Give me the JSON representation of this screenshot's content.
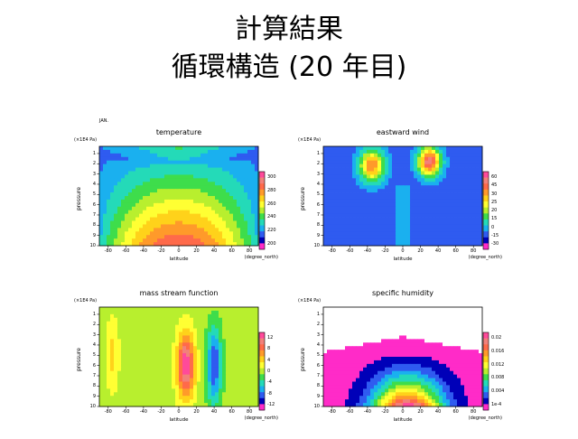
{
  "slide": {
    "title_line1": "計算結果",
    "title_line2": "循環構造 (20 年目)",
    "month_label": "JAN."
  },
  "chart_data": [
    {
      "type": "heatmap",
      "title": "temperature",
      "xlabel": "latitude",
      "x_unit": "(degree_north)",
      "ylabel": "pressure",
      "y_unit": "(×1E4 Pa)",
      "xlim": [
        -90,
        90
      ],
      "ylim": [
        10,
        0.3
      ],
      "x_ticks": [
        "-80",
        "-60",
        "-40",
        "-20",
        "0",
        "20",
        "40",
        "60",
        "80"
      ],
      "y_ticks": [
        "1",
        "2",
        "3",
        "4",
        "5",
        "6",
        "7",
        "8",
        "9",
        "10"
      ],
      "colorbar_ticks": [
        "300",
        "280",
        "260",
        "240",
        "220",
        "200"
      ],
      "colorbar_colors": [
        "#ff4a9a",
        "#f2807a",
        "#ff6a4a",
        "#ff9a2a",
        "#ffd21a",
        "#ffff33",
        "#b8ef2e",
        "#3edd4b",
        "#24dab8",
        "#1ab0ef",
        "#2f5bf0",
        "#0000b8",
        "#ff2bc8"
      ],
      "field": "temperature"
    },
    {
      "type": "heatmap",
      "title": "eastward wind",
      "xlabel": "latitude",
      "x_unit": "(degree_north)",
      "ylabel": "pressure",
      "y_unit": "(×1E4 Pa)",
      "xlim": [
        -90,
        90
      ],
      "ylim": [
        10,
        0.3
      ],
      "x_ticks": [
        "-80",
        "-60",
        "-40",
        "-20",
        "0",
        "20",
        "40",
        "60",
        "80"
      ],
      "y_ticks": [
        "1",
        "2",
        "3",
        "4",
        "5",
        "6",
        "7",
        "8",
        "9",
        "10"
      ],
      "colorbar_ticks": [
        "60",
        "45",
        "30",
        "25",
        "20",
        "15",
        "0",
        "-15",
        "-30"
      ],
      "colorbar_colors": [
        "#ff4a9a",
        "#f2807a",
        "#ff6a4a",
        "#ff9a2a",
        "#ffd21a",
        "#ffff33",
        "#b8ef2e",
        "#3edd4b",
        "#24dab8",
        "#1ab0ef",
        "#2f5bf0",
        "#0000b8",
        "#ff2bc8"
      ],
      "field": "wind"
    },
    {
      "type": "heatmap",
      "title": "mass stream function",
      "xlabel": "latitude",
      "x_unit": "(degree_north)",
      "ylabel": "pressure",
      "y_unit": "(×1E4 Pa)",
      "xlim": [
        -90,
        90
      ],
      "ylim": [
        10,
        0.3
      ],
      "x_ticks": [
        "-80",
        "-60",
        "-40",
        "-20",
        "0",
        "20",
        "40",
        "60",
        "80"
      ],
      "y_ticks": [
        "1",
        "2",
        "3",
        "4",
        "5",
        "6",
        "7",
        "8",
        "9",
        "10"
      ],
      "colorbar_ticks": [
        "12",
        "8",
        "4",
        "0",
        "-4",
        "-8",
        "-12"
      ],
      "colorbar_colors": [
        "#ff4a9a",
        "#f2807a",
        "#ff6a4a",
        "#ff9a2a",
        "#ffd21a",
        "#ffff33",
        "#b8ef2e",
        "#3edd4b",
        "#24dab8",
        "#1ab0ef",
        "#2f5bf0",
        "#0000b8",
        "#ff2bc8"
      ],
      "field": "stream"
    },
    {
      "type": "heatmap",
      "title": "specific humidity",
      "xlabel": "latitude",
      "x_unit": "(degree_north)",
      "ylabel": "pressure",
      "y_unit": "(×1E4 Pa)",
      "xlim": [
        -90,
        90
      ],
      "ylim": [
        10,
        0.3
      ],
      "x_ticks": [
        "-80",
        "-60",
        "-40",
        "-20",
        "0",
        "20",
        "40",
        "60",
        "80"
      ],
      "y_ticks": [
        "1",
        "2",
        "3",
        "4",
        "5",
        "6",
        "7",
        "8",
        "9",
        "10"
      ],
      "colorbar_ticks": [
        "0.02",
        "0.016",
        "0.012",
        "0.008",
        "0.004",
        "1e-4"
      ],
      "colorbar_colors": [
        "#ff4a9a",
        "#f2807a",
        "#ff6a4a",
        "#ff9a2a",
        "#ffd21a",
        "#ffff33",
        "#b8ef2e",
        "#3edd4b",
        "#24dab8",
        "#1ab0ef",
        "#2f5bf0",
        "#0000b8",
        "#ff2bc8"
      ],
      "field": "humidity"
    }
  ]
}
